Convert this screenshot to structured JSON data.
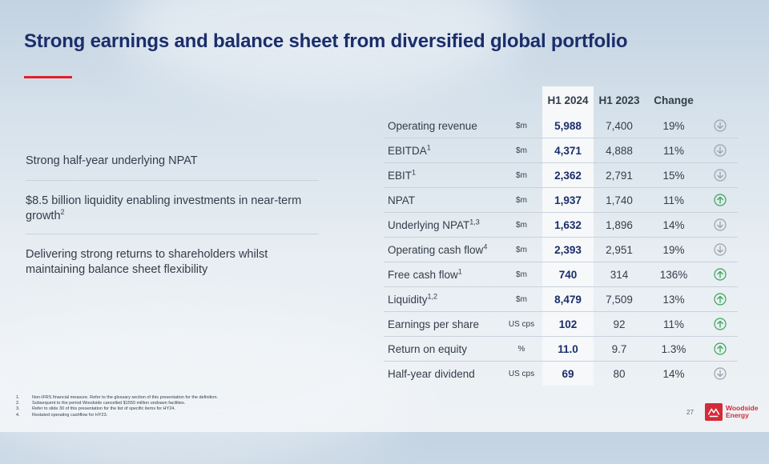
{
  "title": "Strong earnings and balance sheet from diversified global portfolio",
  "highlights": [
    {
      "text": "Strong half-year underlying NPAT"
    },
    {
      "text": "$8.5 billion liquidity enabling investments in near-term growth",
      "sup": "2"
    },
    {
      "text": "Delivering strong returns to shareholders whilst maintaining balance sheet flexibility"
    }
  ],
  "table": {
    "headers": {
      "metric": "",
      "unit": "",
      "current": "H1 2024",
      "prior": "H1 2023",
      "change": "Change"
    },
    "rows": [
      {
        "label": "Operating revenue",
        "sup": "",
        "unit": "$m",
        "current": "5,988",
        "prior": "7,400",
        "change": "19%",
        "direction": "down"
      },
      {
        "label": "EBITDA",
        "sup": "1",
        "unit": "$m",
        "current": "4,371",
        "prior": "4,888",
        "change": "11%",
        "direction": "down"
      },
      {
        "label": "EBIT",
        "sup": "1",
        "unit": "$m",
        "current": "2,362",
        "prior": "2,791",
        "change": "15%",
        "direction": "down"
      },
      {
        "label": "NPAT",
        "sup": "",
        "unit": "$m",
        "current": "1,937",
        "prior": "1,740",
        "change": "11%",
        "direction": "up"
      },
      {
        "label": "Underlying NPAT",
        "sup": "1,3",
        "unit": "$m",
        "current": "1,632",
        "prior": "1,896",
        "change": "14%",
        "direction": "down"
      },
      {
        "label": "Operating cash flow",
        "sup": "4",
        "unit": "$m",
        "current": "2,393",
        "prior": "2,951",
        "change": "19%",
        "direction": "down"
      },
      {
        "label": "Free cash flow",
        "sup": "1",
        "unit": "$m",
        "current": "740",
        "prior": "314",
        "change": "136%",
        "direction": "up"
      },
      {
        "label": "Liquidity",
        "sup": "1,2",
        "unit": "$m",
        "current": "8,479",
        "prior": "7,509",
        "change": "13%",
        "direction": "up"
      },
      {
        "label": "Earnings per share",
        "sup": "",
        "unit": "US cps",
        "current": "102",
        "prior": "92",
        "change": "11%",
        "direction": "up"
      },
      {
        "label": "Return on equity",
        "sup": "",
        "unit": "%",
        "current": "11.0",
        "prior": "9.7",
        "change": "1.3%",
        "direction": "up"
      },
      {
        "label": "Half-year dividend",
        "sup": "",
        "unit": "US cps",
        "current": "69",
        "prior": "80",
        "change": "14%",
        "direction": "down"
      }
    ]
  },
  "footnotes": [
    {
      "num": "1.",
      "text": "Non-IFRS financial measure. Refer to the glossary section of this presentation for the definition."
    },
    {
      "num": "2.",
      "text": "Subsequent to the period Woodside cancelled $1550 million undrawn facilities."
    },
    {
      "num": "3.",
      "text": "Refer to slide 30 of this presentation for the list of specific items for HY24."
    },
    {
      "num": "4.",
      "text": "Restated operating cashflow for HY23."
    }
  ],
  "page_number": "27",
  "logo": {
    "line1": "Woodside",
    "line2": "Energy"
  },
  "colors": {
    "title": "#1b2e6a",
    "accent": "#e0202c",
    "up": "#3aa655",
    "down": "#9aa3ad",
    "brand": "#d42b3a"
  },
  "icons": {
    "up": "arrow-up-circle-icon",
    "down": "arrow-down-circle-icon"
  }
}
